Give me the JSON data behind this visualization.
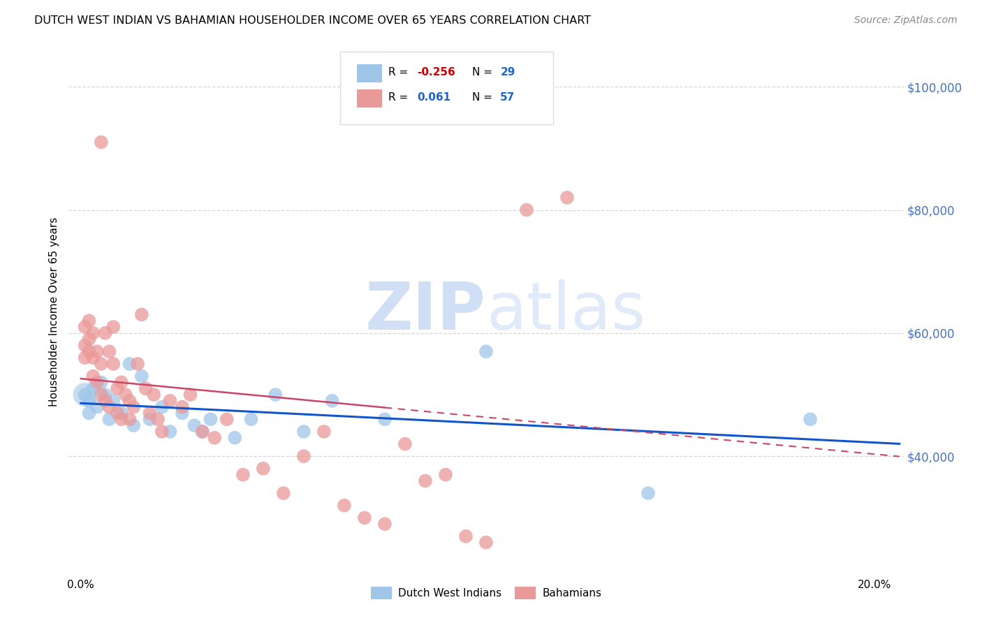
{
  "title": "DUTCH WEST INDIAN VS BAHAMIAN HOUSEHOLDER INCOME OVER 65 YEARS CORRELATION CHART",
  "source": "Source: ZipAtlas.com",
  "ylabel": "Householder Income Over 65 years",
  "legend_label1": "Dutch West Indians",
  "legend_label2": "Bahamians",
  "watermark": "ZIPatlas",
  "blue_color": "#9fc5e8",
  "pink_color": "#ea9999",
  "blue_line_color": "#1155cc",
  "pink_line_color": "#cc4466",
  "blue_scatter_x": [
    0.001,
    0.002,
    0.002,
    0.003,
    0.004,
    0.005,
    0.006,
    0.007,
    0.008,
    0.01,
    0.012,
    0.013,
    0.015,
    0.017,
    0.02,
    0.022,
    0.025,
    0.028,
    0.03,
    0.032,
    0.038,
    0.042,
    0.048,
    0.055,
    0.062,
    0.075,
    0.1,
    0.14,
    0.18
  ],
  "blue_scatter_y": [
    50000,
    49000,
    47000,
    51000,
    48000,
    52000,
    50000,
    46000,
    49000,
    47000,
    55000,
    45000,
    53000,
    46000,
    48000,
    44000,
    47000,
    45000,
    44000,
    46000,
    43000,
    46000,
    50000,
    44000,
    49000,
    46000,
    57000,
    34000,
    46000
  ],
  "pink_scatter_x": [
    0.001,
    0.001,
    0.001,
    0.002,
    0.002,
    0.002,
    0.003,
    0.003,
    0.003,
    0.004,
    0.004,
    0.005,
    0.005,
    0.005,
    0.006,
    0.006,
    0.007,
    0.007,
    0.008,
    0.008,
    0.009,
    0.009,
    0.01,
    0.01,
    0.011,
    0.012,
    0.012,
    0.013,
    0.014,
    0.015,
    0.016,
    0.017,
    0.018,
    0.019,
    0.02,
    0.022,
    0.025,
    0.027,
    0.03,
    0.033,
    0.036,
    0.04,
    0.045,
    0.05,
    0.055,
    0.06,
    0.065,
    0.07,
    0.075,
    0.08,
    0.085,
    0.09,
    0.095,
    0.1,
    0.105,
    0.11,
    0.12
  ],
  "pink_scatter_y": [
    61000,
    58000,
    56000,
    62000,
    59000,
    57000,
    56000,
    60000,
    53000,
    57000,
    52000,
    91000,
    55000,
    50000,
    60000,
    49000,
    57000,
    48000,
    55000,
    61000,
    51000,
    47000,
    52000,
    46000,
    50000,
    49000,
    46000,
    48000,
    55000,
    63000,
    51000,
    47000,
    50000,
    46000,
    44000,
    49000,
    48000,
    50000,
    44000,
    43000,
    46000,
    37000,
    38000,
    34000,
    40000,
    44000,
    32000,
    30000,
    29000,
    42000,
    36000,
    37000,
    27000,
    26000,
    95000,
    80000,
    82000
  ],
  "ylim": [
    20000,
    107000
  ],
  "xlim": [
    -0.003,
    0.203
  ],
  "yticks": [
    40000,
    60000,
    80000,
    100000
  ],
  "ytick_labels": [
    "$40,000",
    "$60,000",
    "$80,000",
    "$100,000"
  ],
  "xtick_positions": [
    0.0,
    0.05,
    0.1,
    0.15,
    0.2
  ],
  "xtick_labels_show": [
    "0.0%",
    "",
    "",
    "",
    "20.0%"
  ]
}
